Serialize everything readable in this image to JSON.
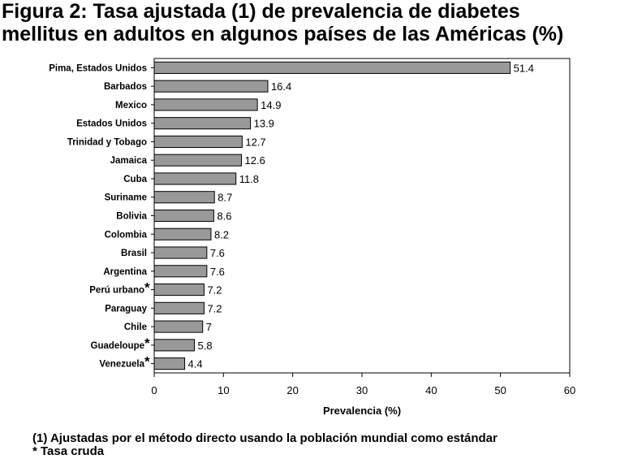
{
  "title_line1": "Figura 2: Tasa ajustada (1) de prevalencia de diabetes",
  "title_line2": "mellitus en adultos en algunos países de las Américas (%)",
  "notes": {
    "line1": "(1) Ajustadas por el método directo usando la población mundial como estándar",
    "line2": "* Tasa cruda"
  },
  "colors": {
    "bar": "#999999",
    "bar_stroke": "#000000",
    "plot_border": "#000000"
  },
  "chart_data": {
    "type": "bar",
    "orientation": "horizontal",
    "categories": [
      "Pima, Estados Unidos",
      "Barbados",
      "Mexico",
      "Estados Unidos",
      "Trinidad y Tobago",
      "Jamaica",
      "Cuba",
      "Suriname",
      "Bolivia",
      "Colombia",
      "Brasil",
      "Argentina",
      "Perú urbano",
      "Paraguay",
      "Chile",
      "Guadeloupe",
      "Venezuela"
    ],
    "values": [
      51.4,
      16.4,
      14.9,
      13.9,
      12.7,
      12.6,
      11.8,
      8.7,
      8.6,
      8.2,
      7.6,
      7.6,
      7.2,
      7.2,
      7,
      5.8,
      4.4
    ],
    "value_labels": [
      "51.4",
      "16.4",
      "14.9",
      "13.9",
      "12.7",
      "12.6",
      "11.8",
      "8.7",
      "8.6",
      "8.2",
      "7.6",
      "7.6",
      "7.2",
      "7.2",
      "7",
      "5.8",
      "4.4"
    ],
    "crude_rate_marker": "*",
    "crude_rate_flags": [
      false,
      false,
      false,
      false,
      false,
      false,
      false,
      false,
      false,
      false,
      false,
      false,
      true,
      false,
      false,
      true,
      true
    ],
    "xlabel": "Prevalencia (%)",
    "xlim": [
      0,
      60
    ],
    "xticks": [
      "0",
      "10",
      "20",
      "30",
      "40",
      "50",
      "60"
    ],
    "grid": false,
    "legend": "none"
  }
}
